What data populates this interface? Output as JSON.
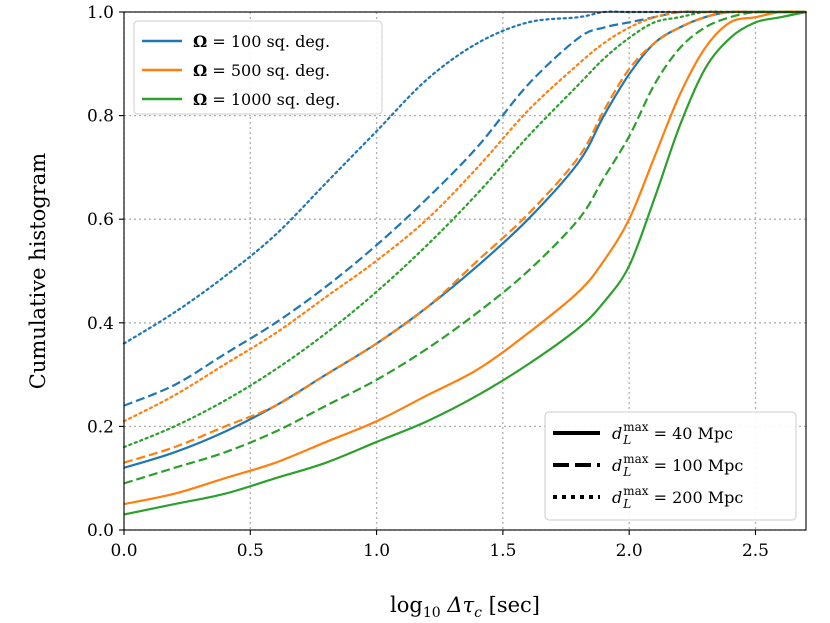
{
  "chart_data": {
    "type": "line",
    "xlabel": "log10 Δτc [sec]",
    "ylabel": "Cumulative histogram",
    "xlim": [
      0.0,
      2.7
    ],
    "ylim": [
      0.0,
      1.0
    ],
    "xticks": [
      "0.0",
      "0.5",
      "1.0",
      "1.5",
      "2.0",
      "2.5"
    ],
    "yticks": [
      "0.0",
      "0.2",
      "0.4",
      "0.6",
      "0.8",
      "1.0"
    ],
    "grid": true,
    "colors": {
      "blue": "#1f77b4",
      "orange": "#ff7f0e",
      "green": "#2ca02c"
    },
    "legend_area": {
      "placement": "top-left",
      "entries": [
        {
          "symbol": "Ω",
          "text": " = 100 sq. deg.",
          "color": "#1f77b4"
        },
        {
          "symbol": "Ω",
          "text": " = 500 sq. deg.",
          "color": "#ff7f0e"
        },
        {
          "symbol": "Ω",
          "text": " = 1000 sq. deg.",
          "color": "#2ca02c"
        }
      ]
    },
    "legend_distance": {
      "placement": "bottom-right",
      "entries": [
        {
          "style": "solid",
          "symbol": "d",
          "sub": "L",
          "sup": "max",
          "text": " = 40 Mpc"
        },
        {
          "style": "dashed",
          "symbol": "d",
          "sub": "L",
          "sup": "max",
          "text": " = 100 Mpc"
        },
        {
          "style": "dotted",
          "symbol": "d",
          "sub": "L",
          "sup": "max",
          "text": " = 200 Mpc"
        }
      ]
    },
    "x": [
      0.0,
      0.2,
      0.4,
      0.6,
      0.8,
      1.0,
      1.2,
      1.4,
      1.6,
      1.8,
      1.9,
      2.0,
      2.1,
      2.2,
      2.3,
      2.4,
      2.5,
      2.6,
      2.7
    ],
    "series": [
      {
        "name": "Ω = 100 sq. deg., dL max = 40 Mpc",
        "color": "blue",
        "style": "solid",
        "values": [
          0.12,
          0.15,
          0.19,
          0.24,
          0.3,
          0.36,
          0.43,
          0.51,
          0.6,
          0.71,
          0.8,
          0.88,
          0.94,
          0.97,
          0.99,
          1.0,
          1.0,
          1.0,
          1.0
        ]
      },
      {
        "name": "Ω = 100 sq. deg., dL max = 100 Mpc",
        "color": "blue",
        "style": "dashed",
        "values": [
          0.24,
          0.28,
          0.34,
          0.4,
          0.47,
          0.55,
          0.64,
          0.74,
          0.86,
          0.95,
          0.97,
          0.98,
          0.99,
          1.0,
          1.0,
          1.0,
          1.0,
          1.0,
          1.0
        ]
      },
      {
        "name": "Ω = 100 sq. deg., dL max = 200 Mpc",
        "color": "blue",
        "style": "dotted",
        "values": [
          0.36,
          0.42,
          0.49,
          0.57,
          0.67,
          0.77,
          0.87,
          0.94,
          0.98,
          0.99,
          1.0,
          1.0,
          1.0,
          1.0,
          1.0,
          1.0,
          1.0,
          1.0,
          1.0
        ]
      },
      {
        "name": "Ω = 500 sq. deg., dL max = 40 Mpc",
        "color": "orange",
        "style": "solid",
        "values": [
          0.05,
          0.07,
          0.1,
          0.13,
          0.17,
          0.21,
          0.26,
          0.31,
          0.38,
          0.46,
          0.52,
          0.6,
          0.72,
          0.84,
          0.93,
          0.98,
          0.99,
          1.0,
          1.0
        ]
      },
      {
        "name": "Ω = 500 sq. deg., dL max = 100 Mpc",
        "color": "orange",
        "style": "dashed",
        "values": [
          0.13,
          0.16,
          0.2,
          0.24,
          0.3,
          0.36,
          0.43,
          0.52,
          0.61,
          0.72,
          0.81,
          0.89,
          0.94,
          0.97,
          0.99,
          1.0,
          1.0,
          1.0,
          1.0
        ]
      },
      {
        "name": "Ω = 500 sq. deg., dL max = 200 Mpc",
        "color": "orange",
        "style": "dotted",
        "values": [
          0.21,
          0.26,
          0.32,
          0.38,
          0.45,
          0.52,
          0.6,
          0.7,
          0.81,
          0.9,
          0.94,
          0.97,
          0.99,
          1.0,
          1.0,
          1.0,
          1.0,
          1.0,
          1.0
        ]
      },
      {
        "name": "Ω = 1000 sq. deg., dL max = 40 Mpc",
        "color": "green",
        "style": "solid",
        "values": [
          0.03,
          0.05,
          0.07,
          0.1,
          0.13,
          0.17,
          0.21,
          0.26,
          0.32,
          0.39,
          0.44,
          0.51,
          0.64,
          0.78,
          0.89,
          0.95,
          0.98,
          0.99,
          1.0
        ]
      },
      {
        "name": "Ω = 1000 sq. deg., dL max = 100 Mpc",
        "color": "green",
        "style": "dashed",
        "values": [
          0.09,
          0.12,
          0.15,
          0.19,
          0.24,
          0.29,
          0.35,
          0.42,
          0.5,
          0.6,
          0.68,
          0.76,
          0.86,
          0.93,
          0.97,
          0.99,
          1.0,
          1.0,
          1.0
        ]
      },
      {
        "name": "Ω = 1000 sq. deg., dL max = 200 Mpc",
        "color": "green",
        "style": "dotted",
        "values": [
          0.16,
          0.2,
          0.25,
          0.31,
          0.38,
          0.46,
          0.55,
          0.65,
          0.76,
          0.86,
          0.91,
          0.95,
          0.98,
          0.99,
          1.0,
          1.0,
          1.0,
          1.0,
          1.0
        ]
      }
    ]
  }
}
